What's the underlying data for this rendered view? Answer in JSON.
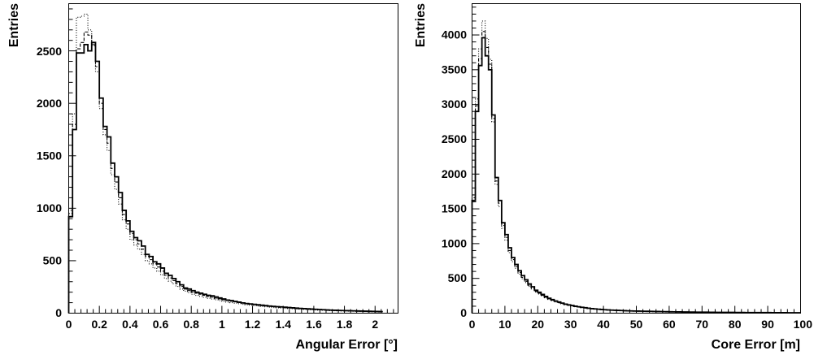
{
  "chart_data": [
    {
      "type": "histogram",
      "xlabel": "Angular Error [°]",
      "ylabel": "Entries",
      "xlim": [
        0,
        2.15
      ],
      "ylim": [
        0,
        2950
      ],
      "x_ticks": [
        "0",
        "0.2",
        "0.4",
        "0.6",
        "0.8",
        "1",
        "1.2",
        "1.4",
        "1.6",
        "1.8",
        "2"
      ],
      "y_ticks": [
        "0",
        "500",
        "1000",
        "1500",
        "2000",
        "2500"
      ],
      "bin_width": 0.025,
      "grid": false,
      "series": [
        {
          "style": "solid",
          "values": [
            920,
            1750,
            2480,
            2480,
            2560,
            2500,
            2580,
            2400,
            2050,
            1780,
            1680,
            1430,
            1300,
            1150,
            980,
            880,
            780,
            720,
            690,
            640,
            560,
            540,
            490,
            470,
            430,
            380,
            360,
            330,
            300,
            270,
            240,
            230,
            215,
            200,
            190,
            180,
            170,
            165,
            155,
            145,
            135,
            125,
            120,
            112,
            105,
            98,
            92,
            88,
            84,
            80,
            76,
            72,
            68,
            65,
            62,
            60,
            57,
            54,
            51,
            48,
            45,
            43,
            41,
            39,
            37,
            35,
            33,
            31,
            29,
            28,
            26,
            25,
            24,
            23,
            22,
            21,
            20,
            19,
            18,
            17,
            16,
            15
          ]
        },
        {
          "style": "dashed",
          "values": [
            950,
            1800,
            2520,
            2580,
            2680,
            2650,
            2560,
            2350,
            2000,
            1750,
            1620,
            1380,
            1250,
            1100,
            940,
            850,
            760,
            700,
            660,
            610,
            540,
            510,
            470,
            440,
            400,
            360,
            335,
            310,
            280,
            255,
            230,
            215,
            200,
            190,
            180,
            170,
            160,
            152,
            144,
            136,
            128,
            120,
            114,
            108,
            101,
            95,
            90,
            85,
            80,
            76,
            72,
            68,
            64,
            61,
            58,
            56,
            53,
            50,
            48,
            45,
            43,
            41,
            39,
            37,
            35,
            33,
            31,
            29,
            28,
            26,
            25,
            24,
            23,
            22,
            21,
            20,
            19,
            18,
            17,
            16,
            15,
            14
          ]
        },
        {
          "style": "dotted",
          "values": [
            980,
            1900,
            2820,
            2830,
            2850,
            2700,
            2550,
            2300,
            1950,
            1700,
            1550,
            1320,
            1180,
            1040,
            890,
            800,
            700,
            650,
            610,
            560,
            500,
            470,
            430,
            400,
            365,
            330,
            305,
            280,
            255,
            230,
            210,
            195,
            180,
            170,
            160,
            150,
            142,
            135,
            128,
            120,
            113,
            106,
            100,
            95,
            90,
            85,
            80,
            76,
            72,
            68,
            64,
            60,
            57,
            54,
            51,
            49,
            46,
            44,
            42,
            40,
            38,
            36,
            34,
            32,
            30,
            28,
            27,
            26,
            24,
            23,
            22,
            21,
            20,
            19,
            18,
            17,
            16,
            15,
            14,
            13,
            12,
            11
          ]
        }
      ]
    },
    {
      "type": "histogram",
      "xlabel": "Core Error [m]",
      "ylabel": "Entries",
      "xlim": [
        0,
        100
      ],
      "ylim": [
        0,
        4450
      ],
      "x_ticks": [
        "0",
        "10",
        "20",
        "30",
        "40",
        "50",
        "60",
        "70",
        "80",
        "90",
        "100"
      ],
      "y_ticks": [
        "0",
        "500",
        "1000",
        "1500",
        "2000",
        "2500",
        "3000",
        "3500",
        "4000"
      ],
      "bin_width": 1,
      "grid": false,
      "series": [
        {
          "style": "solid",
          "values": [
            1620,
            2900,
            3560,
            3960,
            3700,
            3500,
            2850,
            1950,
            1620,
            1300,
            1130,
            940,
            800,
            700,
            610,
            540,
            480,
            420,
            380,
            330,
            300,
            270,
            240,
            215,
            195,
            175,
            160,
            145,
            130,
            120,
            110,
            100,
            92,
            85,
            78,
            72,
            66,
            61,
            57,
            53,
            50,
            47,
            44,
            42,
            40,
            38,
            36,
            34,
            32,
            31,
            30,
            29,
            28,
            27,
            26,
            25,
            24,
            23,
            22,
            21,
            20,
            19,
            18,
            18,
            17,
            17,
            16,
            16,
            15,
            15,
            14,
            14,
            13,
            13,
            12,
            12,
            12,
            11,
            11,
            11,
            10,
            10,
            10,
            9,
            9,
            9,
            9,
            8,
            8,
            8,
            8,
            7,
            7,
            7,
            7,
            7,
            6,
            6,
            6,
            6
          ]
        },
        {
          "style": "dashed",
          "values": [
            1660,
            2980,
            3660,
            4050,
            3820,
            3580,
            2800,
            1900,
            1580,
            1260,
            1090,
            900,
            770,
            670,
            585,
            515,
            458,
            400,
            362,
            315,
            286,
            258,
            230,
            206,
            186,
            168,
            153,
            139,
            125,
            115,
            105,
            96,
            88,
            81,
            75,
            69,
            63,
            59,
            55,
            51,
            48,
            45,
            42,
            40,
            38,
            36,
            34,
            32,
            31,
            30,
            29,
            28,
            27,
            26,
            25,
            24,
            23,
            22,
            21,
            20,
            19,
            18,
            18,
            17,
            17,
            16,
            16,
            15,
            15,
            14,
            14,
            13,
            13,
            12,
            12,
            12,
            11,
            11,
            11,
            10,
            10,
            10,
            9,
            9,
            9,
            9,
            8,
            8,
            8,
            8,
            7,
            7,
            7,
            7,
            7,
            6,
            6,
            6,
            6,
            6
          ]
        },
        {
          "style": "dotted",
          "values": [
            1700,
            3080,
            3800,
            4200,
            3950,
            3650,
            2750,
            1850,
            1530,
            1220,
            1050,
            870,
            740,
            645,
            562,
            495,
            440,
            385,
            348,
            303,
            275,
            248,
            221,
            198,
            179,
            161,
            147,
            133,
            120,
            110,
            101,
            92,
            85,
            78,
            72,
            66,
            61,
            57,
            53,
            49,
            46,
            43,
            41,
            39,
            37,
            35,
            33,
            31,
            30,
            29,
            28,
            27,
            26,
            25,
            24,
            23,
            22,
            21,
            20,
            19,
            18,
            18,
            17,
            17,
            16,
            16,
            15,
            15,
            14,
            14,
            13,
            13,
            12,
            12,
            12,
            11,
            11,
            11,
            10,
            10,
            10,
            9,
            9,
            9,
            9,
            8,
            8,
            8,
            8,
            7,
            7,
            7,
            7,
            7,
            6,
            6,
            6,
            6,
            6,
            6
          ]
        }
      ]
    }
  ]
}
